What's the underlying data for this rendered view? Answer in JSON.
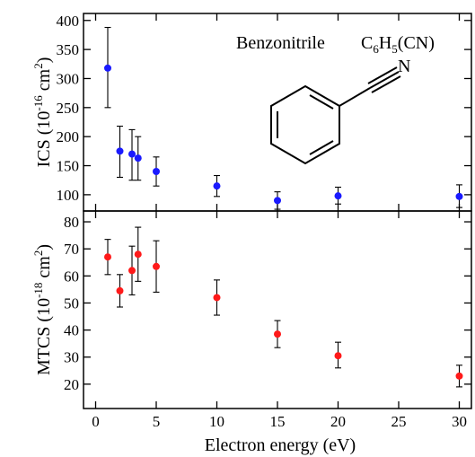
{
  "chart_data": [
    {
      "type": "scatter",
      "panel": "top",
      "title": "",
      "ylabel": {
        "base": "ICS (10",
        "exp": "-16",
        "mid": " cm",
        "exp2": "2",
        "end": ")"
      },
      "xlim": [
        -1,
        31
      ],
      "ylim": [
        72,
        412
      ],
      "yticks": [
        100,
        150,
        200,
        250,
        300,
        350,
        400
      ],
      "marker_color": "#1a1aff",
      "series": [
        {
          "x": [
            1,
            2,
            3,
            3.5,
            5,
            10,
            15,
            20,
            30
          ],
          "y": [
            318,
            175,
            170,
            163,
            140,
            115,
            90,
            98,
            97
          ],
          "err_low": [
            250,
            130,
            125,
            125,
            115,
            97,
            75,
            84,
            78
          ],
          "err_high": [
            388,
            218,
            212,
            200,
            165,
            133,
            105,
            113,
            117
          ]
        }
      ],
      "annotation": {
        "molecule_name": "Benzonitrile",
        "formula": {
          "a": "C",
          "s1": "6",
          "b": "H",
          "s2": "5",
          "c": "(CN)"
        },
        "atom_label": "N"
      }
    },
    {
      "type": "scatter",
      "panel": "bottom",
      "title": "",
      "ylabel": {
        "base": "MTCS (10",
        "exp": "-18",
        "mid": " cm",
        "exp2": "2",
        "end": ")"
      },
      "xlabel": "Electron energy (eV)",
      "xlim": [
        -1,
        31
      ],
      "ylim": [
        11,
        84
      ],
      "xticks": [
        0,
        5,
        10,
        15,
        20,
        25,
        30
      ],
      "yticks": [
        20,
        30,
        40,
        50,
        60,
        70,
        80
      ],
      "marker_color": "#ff1a1a",
      "series": [
        {
          "x": [
            1,
            2,
            3,
            3.5,
            5,
            10,
            15,
            20,
            30
          ],
          "y": [
            67,
            54.5,
            62,
            68,
            63.5,
            52,
            38.5,
            30.5,
            23
          ],
          "err_low": [
            60.5,
            48.5,
            53,
            58,
            54,
            45.5,
            33.5,
            26,
            19
          ],
          "err_high": [
            73.5,
            60.5,
            71,
            78,
            73,
            58.5,
            43.5,
            35.5,
            27
          ]
        }
      ]
    }
  ]
}
